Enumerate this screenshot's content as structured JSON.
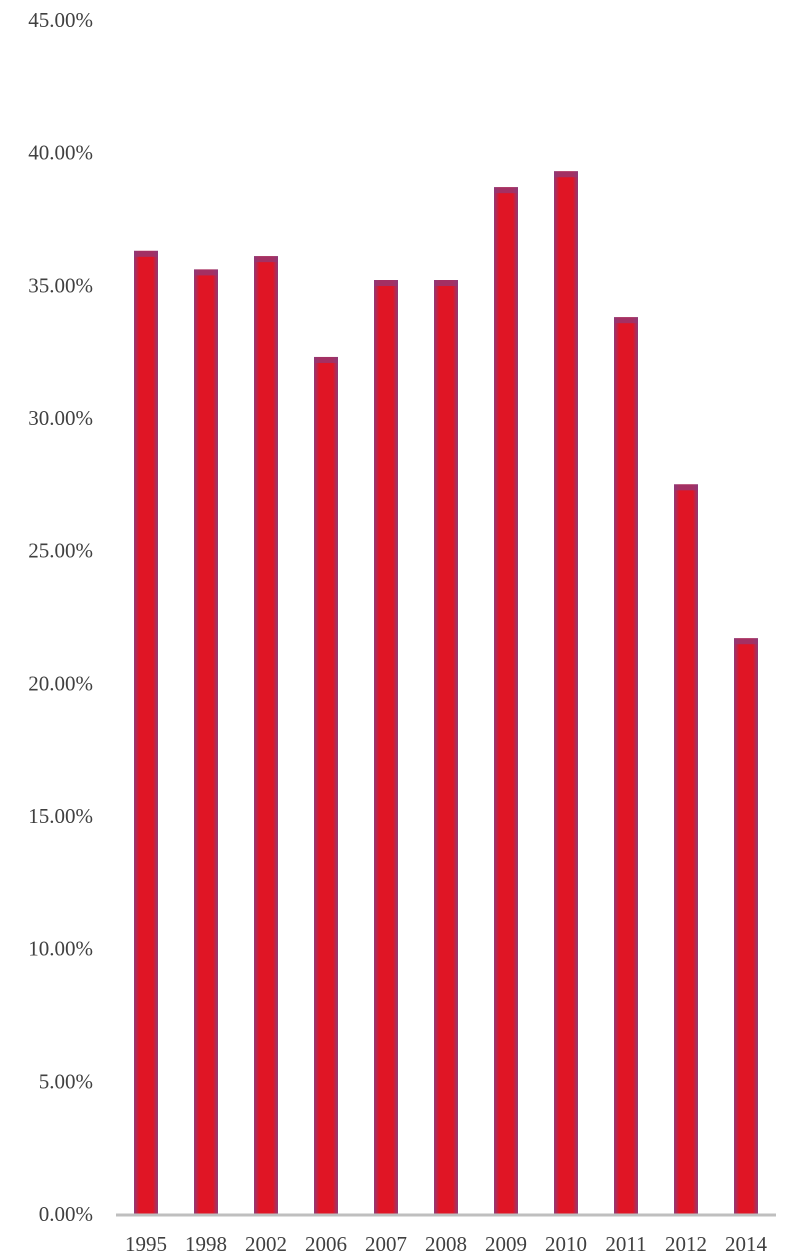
{
  "chart_data": {
    "type": "bar",
    "title": "",
    "xlabel": "",
    "ylabel": "",
    "categories": [
      "1995",
      "1998",
      "2002",
      "2006",
      "2007",
      "2008",
      "2009",
      "2010",
      "2011",
      "2012",
      "2014"
    ],
    "values": [
      36.3,
      35.6,
      36.1,
      32.3,
      35.2,
      35.2,
      38.7,
      39.3,
      33.8,
      27.5,
      21.7
    ],
    "value_unit": "%",
    "ylim": [
      0,
      45
    ],
    "y_ticks": [
      "0.00%",
      "5.00%",
      "10.00%",
      "15.00%",
      "20.00%",
      "25.00%",
      "30.00%",
      "35.00%",
      "40.00%",
      "45.00%"
    ],
    "y_tick_values": [
      0,
      5,
      10,
      15,
      20,
      25,
      30,
      35,
      40,
      45
    ],
    "grid": false,
    "legend": "none",
    "colors": {
      "bar_center": "#e01525",
      "bar_edge": "#8f3a78",
      "axis": "#bfbfbf",
      "tick_text": "#404040"
    }
  }
}
